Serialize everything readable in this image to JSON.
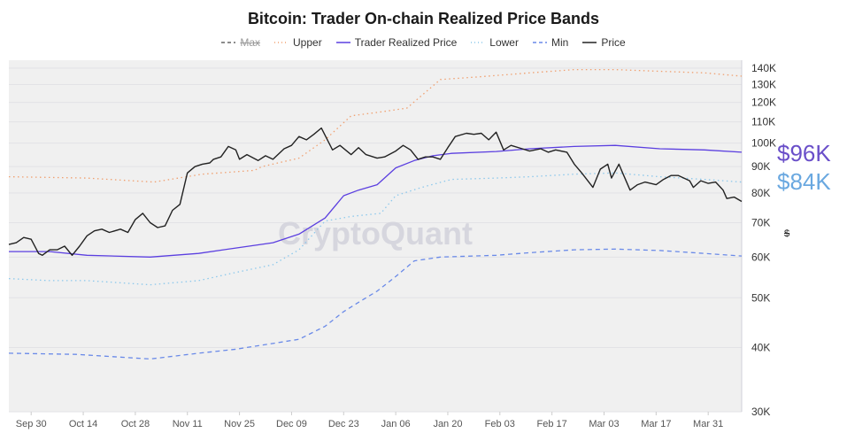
{
  "chart_data": {
    "type": "line",
    "title": "Bitcoin: Trader On-chain Realized Price Bands",
    "ylabel": "$",
    "yscale": "log",
    "ylim": [
      30000,
      145000
    ],
    "xlim": [
      "2024-09-24",
      "2025-04-09"
    ],
    "grid": true,
    "legend_position": "top",
    "watermark": "CryptoQuant",
    "y_ticks": [
      {
        "v": 30000,
        "label": "30K"
      },
      {
        "v": 40000,
        "label": "40K"
      },
      {
        "v": 50000,
        "label": "50K"
      },
      {
        "v": 60000,
        "label": "60K"
      },
      {
        "v": 70000,
        "label": "70K"
      },
      {
        "v": 80000,
        "label": "80K"
      },
      {
        "v": 90000,
        "label": "90K"
      },
      {
        "v": 100000,
        "label": "100K"
      },
      {
        "v": 110000,
        "label": "110K"
      },
      {
        "v": 120000,
        "label": "120K"
      },
      {
        "v": 130000,
        "label": "130K"
      },
      {
        "v": 140000,
        "label": "140K"
      }
    ],
    "x_ticks": [
      {
        "d": "2024-09-30",
        "label": "Sep 30"
      },
      {
        "d": "2024-10-14",
        "label": "Oct 14"
      },
      {
        "d": "2024-10-28",
        "label": "Oct 28"
      },
      {
        "d": "2024-11-11",
        "label": "Nov 11"
      },
      {
        "d": "2024-11-25",
        "label": "Nov 25"
      },
      {
        "d": "2024-12-09",
        "label": "Dec 09"
      },
      {
        "d": "2024-12-23",
        "label": "Dec 23"
      },
      {
        "d": "2025-01-06",
        "label": "Jan 06"
      },
      {
        "d": "2025-01-20",
        "label": "Jan 20"
      },
      {
        "d": "2025-02-03",
        "label": "Feb 03"
      },
      {
        "d": "2025-02-17",
        "label": "Feb 17"
      },
      {
        "d": "2025-03-03",
        "label": "Mar 03"
      },
      {
        "d": "2025-03-17",
        "label": "Mar 17"
      },
      {
        "d": "2025-03-31",
        "label": "Mar 31"
      }
    ],
    "current_labels": [
      {
        "series": "Trader Realized Price",
        "text": "$96K",
        "color": "#6a4fc9"
      },
      {
        "series": "Lower",
        "text": "$84K",
        "color": "#6aa8e0"
      }
    ],
    "series": [
      {
        "name": "Max",
        "color": "#666666",
        "style": "dashed",
        "hidden": true,
        "data": []
      },
      {
        "name": "Upper",
        "color": "#f0a070",
        "style": "dotted",
        "data": [
          [
            "2024-09-24",
            86000
          ],
          [
            "2024-10-15",
            85500
          ],
          [
            "2024-11-02",
            84000
          ],
          [
            "2024-11-15",
            87000
          ],
          [
            "2024-11-29",
            88500
          ],
          [
            "2024-12-01",
            90000
          ],
          [
            "2024-12-11",
            93500
          ],
          [
            "2024-12-18",
            101500
          ],
          [
            "2024-12-25",
            113000
          ],
          [
            "2025-01-02",
            115000
          ],
          [
            "2025-01-09",
            117000
          ],
          [
            "2025-01-18",
            133000
          ],
          [
            "2025-01-28",
            134500
          ],
          [
            "2025-02-11",
            137000
          ],
          [
            "2025-02-23",
            139000
          ],
          [
            "2025-03-06",
            139000
          ],
          [
            "2025-03-18",
            138000
          ],
          [
            "2025-03-30",
            137000
          ],
          [
            "2025-04-09",
            135000
          ]
        ]
      },
      {
        "name": "Trader Realized Price",
        "color": "#5b3fe0",
        "style": "solid",
        "data": [
          [
            "2024-09-24",
            61500
          ],
          [
            "2024-10-05",
            61500
          ],
          [
            "2024-10-15",
            60500
          ],
          [
            "2024-11-01",
            60000
          ],
          [
            "2024-11-14",
            61000
          ],
          [
            "2024-11-24",
            62500
          ],
          [
            "2024-12-04",
            64000
          ],
          [
            "2024-12-11",
            66500
          ],
          [
            "2024-12-18",
            71500
          ],
          [
            "2024-12-23",
            79000
          ],
          [
            "2024-12-27",
            81000
          ],
          [
            "2025-01-01",
            83000
          ],
          [
            "2025-01-06",
            89500
          ],
          [
            "2025-01-11",
            92500
          ],
          [
            "2025-01-16",
            94500
          ],
          [
            "2025-01-21",
            95500
          ],
          [
            "2025-02-02",
            96300
          ],
          [
            "2025-02-11",
            97500
          ],
          [
            "2025-02-23",
            98500
          ],
          [
            "2025-03-06",
            99000
          ],
          [
            "2025-03-18",
            97500
          ],
          [
            "2025-03-30",
            97000
          ],
          [
            "2025-04-09",
            96000
          ]
        ]
      },
      {
        "name": "Lower",
        "color": "#8cc8ec",
        "style": "dotted",
        "data": [
          [
            "2024-09-24",
            54500
          ],
          [
            "2024-10-05",
            54000
          ],
          [
            "2024-10-15",
            54000
          ],
          [
            "2024-11-01",
            53000
          ],
          [
            "2024-11-14",
            54000
          ],
          [
            "2024-11-24",
            56000
          ],
          [
            "2024-12-04",
            58000
          ],
          [
            "2024-12-11",
            62000
          ],
          [
            "2024-12-18",
            70500
          ],
          [
            "2024-12-25",
            72000
          ],
          [
            "2025-01-02",
            73000
          ],
          [
            "2025-01-06",
            79000
          ],
          [
            "2025-01-13",
            82000
          ],
          [
            "2025-01-21",
            85000
          ],
          [
            "2025-02-02",
            85500
          ],
          [
            "2025-02-11",
            86000
          ],
          [
            "2025-02-23",
            87000
          ],
          [
            "2025-03-06",
            87500
          ],
          [
            "2025-03-18",
            86000
          ],
          [
            "2025-03-30",
            85000
          ],
          [
            "2025-04-09",
            84000
          ]
        ]
      },
      {
        "name": "Min",
        "color": "#6a8ae8",
        "style": "dashed",
        "data": [
          [
            "2024-09-24",
            39000
          ],
          [
            "2024-10-12",
            38800
          ],
          [
            "2024-10-22",
            38400
          ],
          [
            "2024-11-01",
            38000
          ],
          [
            "2024-11-14",
            39000
          ],
          [
            "2024-11-24",
            39700
          ],
          [
            "2024-12-11",
            41500
          ],
          [
            "2024-12-18",
            44000
          ],
          [
            "2024-12-23",
            47000
          ],
          [
            "2024-12-27",
            49000
          ],
          [
            "2025-01-01",
            51500
          ],
          [
            "2025-01-06",
            55000
          ],
          [
            "2025-01-11",
            59000
          ],
          [
            "2025-01-18",
            60000
          ],
          [
            "2025-02-02",
            60500
          ],
          [
            "2025-02-11",
            61200
          ],
          [
            "2025-02-23",
            62000
          ],
          [
            "2025-03-06",
            62200
          ],
          [
            "2025-03-18",
            61800
          ],
          [
            "2025-03-30",
            61000
          ],
          [
            "2025-04-09",
            60300
          ]
        ]
      },
      {
        "name": "Price",
        "color": "#222222",
        "style": "solid",
        "data": [
          [
            "2024-09-24",
            63500
          ],
          [
            "2024-09-26",
            64000
          ],
          [
            "2024-09-28",
            65500
          ],
          [
            "2024-09-30",
            65000
          ],
          [
            "2024-10-02",
            61000
          ],
          [
            "2024-10-03",
            60500
          ],
          [
            "2024-10-05",
            62000
          ],
          [
            "2024-10-07",
            62000
          ],
          [
            "2024-10-09",
            63000
          ],
          [
            "2024-10-11",
            60500
          ],
          [
            "2024-10-13",
            63000
          ],
          [
            "2024-10-15",
            66000
          ],
          [
            "2024-10-17",
            67500
          ],
          [
            "2024-10-19",
            68000
          ],
          [
            "2024-10-21",
            67000
          ],
          [
            "2024-10-24",
            68000
          ],
          [
            "2024-10-26",
            67000
          ],
          [
            "2024-10-28",
            71000
          ],
          [
            "2024-10-30",
            73000
          ],
          [
            "2024-11-01",
            70000
          ],
          [
            "2024-11-03",
            68500
          ],
          [
            "2024-11-05",
            69000
          ],
          [
            "2024-11-07",
            74000
          ],
          [
            "2024-11-09",
            76000
          ],
          [
            "2024-11-11",
            87500
          ],
          [
            "2024-11-13",
            90000
          ],
          [
            "2024-11-15",
            91000
          ],
          [
            "2024-11-17",
            91500
          ],
          [
            "2024-11-18",
            93000
          ],
          [
            "2024-11-20",
            94000
          ],
          [
            "2024-11-22",
            98500
          ],
          [
            "2024-11-24",
            97000
          ],
          [
            "2024-11-25",
            93000
          ],
          [
            "2024-11-27",
            95000
          ],
          [
            "2024-11-30",
            92500
          ],
          [
            "2024-12-02",
            94500
          ],
          [
            "2024-12-04",
            93000
          ],
          [
            "2024-12-07",
            97500
          ],
          [
            "2024-12-09",
            99000
          ],
          [
            "2024-12-11",
            103000
          ],
          [
            "2024-12-13",
            101500
          ],
          [
            "2024-12-15",
            104000
          ],
          [
            "2024-12-17",
            107000
          ],
          [
            "2024-12-20",
            97000
          ],
          [
            "2024-12-22",
            99000
          ],
          [
            "2024-12-25",
            95000
          ],
          [
            "2024-12-27",
            98000
          ],
          [
            "2024-12-29",
            95000
          ],
          [
            "2025-01-01",
            93500
          ],
          [
            "2025-01-03",
            94000
          ],
          [
            "2025-01-06",
            96500
          ],
          [
            "2025-01-08",
            99000
          ],
          [
            "2025-01-10",
            97000
          ],
          [
            "2025-01-12",
            93000
          ],
          [
            "2025-01-14",
            94000
          ],
          [
            "2025-01-16",
            94000
          ],
          [
            "2025-01-18",
            93000
          ],
          [
            "2025-01-20",
            98000
          ],
          [
            "2025-01-22",
            103000
          ],
          [
            "2025-01-25",
            104500
          ],
          [
            "2025-01-27",
            104000
          ],
          [
            "2025-01-29",
            104500
          ],
          [
            "2025-01-31",
            101500
          ],
          [
            "2025-02-02",
            105000
          ],
          [
            "2025-02-04",
            97000
          ],
          [
            "2025-02-06",
            99000
          ],
          [
            "2025-02-09",
            97500
          ],
          [
            "2025-02-11",
            96500
          ],
          [
            "2025-02-14",
            97500
          ],
          [
            "2025-02-16",
            96000
          ],
          [
            "2025-02-18",
            97000
          ],
          [
            "2025-02-21",
            96000
          ],
          [
            "2025-02-23",
            91000
          ],
          [
            "2025-02-25",
            87500
          ],
          [
            "2025-02-28",
            82000
          ],
          [
            "2025-03-02",
            89000
          ],
          [
            "2025-03-04",
            91000
          ],
          [
            "2025-03-05",
            85500
          ],
          [
            "2025-03-07",
            91000
          ],
          [
            "2025-03-08",
            87500
          ],
          [
            "2025-03-10",
            81000
          ],
          [
            "2025-03-12",
            83000
          ],
          [
            "2025-03-14",
            84000
          ],
          [
            "2025-03-17",
            83000
          ],
          [
            "2025-03-19",
            85000
          ],
          [
            "2025-03-21",
            86500
          ],
          [
            "2025-03-23",
            86500
          ],
          [
            "2025-03-26",
            84500
          ],
          [
            "2025-03-27",
            82000
          ],
          [
            "2025-03-29",
            84500
          ],
          [
            "2025-03-31",
            83500
          ],
          [
            "2025-04-02",
            84000
          ],
          [
            "2025-04-04",
            81000
          ],
          [
            "2025-04-05",
            78000
          ],
          [
            "2025-04-07",
            78500
          ],
          [
            "2025-04-09",
            77000
          ]
        ]
      }
    ]
  }
}
